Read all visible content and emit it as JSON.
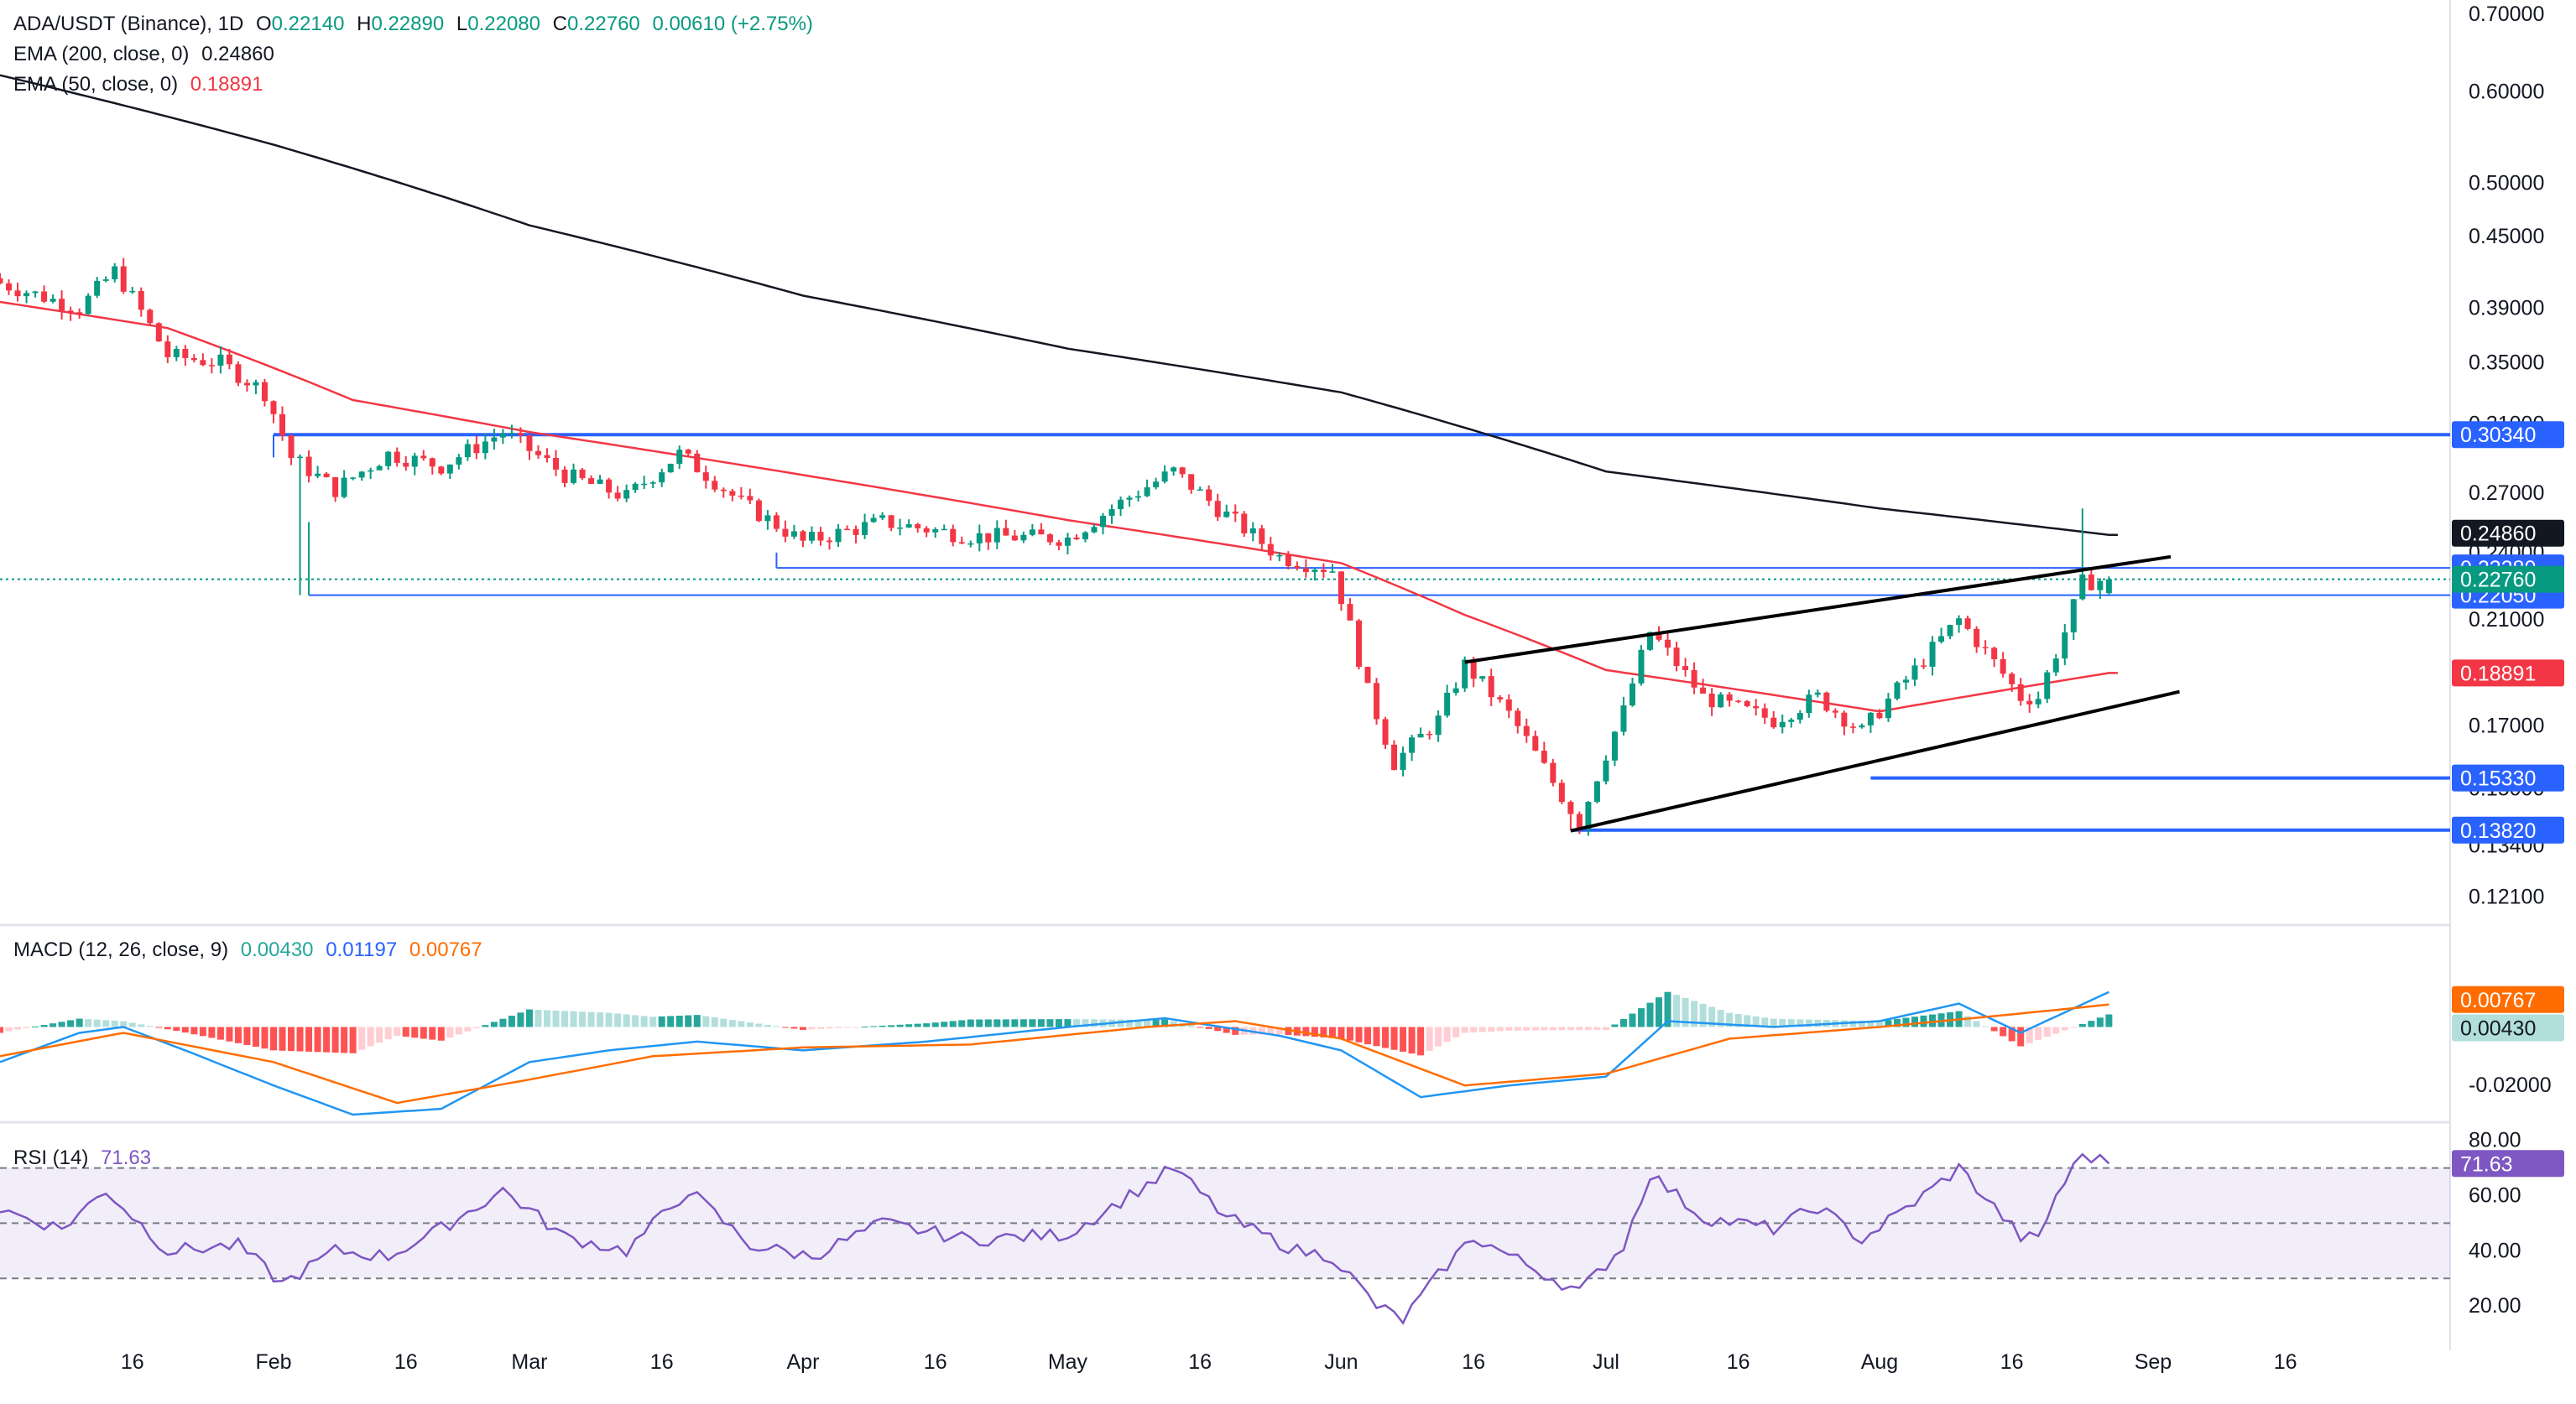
{
  "header": {
    "symbol": "ADA/USDT (Binance), 1D",
    "o_label": "O",
    "o_value": "0.22140",
    "h_label": "H",
    "h_value": "0.22890",
    "l_label": "L",
    "l_value": "0.22080",
    "c_label": "C",
    "c_value": "0.22760",
    "change": "0.00610 (+2.75%)",
    "ema200_label": "EMA (200, close, 0)",
    "ema200_value": "0.24860",
    "ema50_label": "EMA (50, close, 0)",
    "ema50_value": "0.18891"
  },
  "macd_legend": {
    "label": "MACD (12, 26, close, 9)",
    "hist": "0.00430",
    "macd": "0.01197",
    "signal": "0.00767"
  },
  "rsi_legend": {
    "label": "RSI (14)",
    "value": "71.63"
  },
  "colors": {
    "up": "#089981",
    "down": "#f23645",
    "ema200": "#131722",
    "ema50": "#f23645",
    "level": "#2962ff",
    "macd": "#2196f3",
    "signal": "#ff6d00",
    "rsi": "#7e57c2",
    "hist_up_strong": "#26a69a",
    "hist_up_weak": "#b2dfdb",
    "hist_down_strong": "#ff5252",
    "hist_down_weak": "#ffcdd2"
  },
  "chart_data": [
    {
      "type": "candlestick",
      "timeframe": "1D",
      "x_range": [
        "2024-01-01",
        "2024-09-24"
      ],
      "y_scale": "log",
      "ylim": [
        0.115,
        0.72
      ],
      "y_ticks": [
        "0.70000",
        "0.60000",
        "0.50000",
        "0.45000",
        "0.39000",
        "0.35000",
        "0.31000",
        "0.27000",
        "0.24000",
        "0.21000",
        "0.17000",
        "0.15000",
        "0.13400",
        "0.12100"
      ],
      "x_ticks": [
        {
          "date": "2024-01-16",
          "label": "16"
        },
        {
          "date": "2024-02-01",
          "label": "Feb"
        },
        {
          "date": "2024-02-16",
          "label": "16"
        },
        {
          "date": "2024-03-01",
          "label": "Mar"
        },
        {
          "date": "2024-03-16",
          "label": "16"
        },
        {
          "date": "2024-04-01",
          "label": "Apr"
        },
        {
          "date": "2024-04-16",
          "label": "16"
        },
        {
          "date": "2024-05-01",
          "label": "May"
        },
        {
          "date": "2024-05-16",
          "label": "16"
        },
        {
          "date": "2024-06-01",
          "label": "Jun"
        },
        {
          "date": "2024-06-16",
          "label": "16"
        },
        {
          "date": "2024-07-01",
          "label": "Jul"
        },
        {
          "date": "2024-07-16",
          "label": "16"
        },
        {
          "date": "2024-08-01",
          "label": "Aug"
        },
        {
          "date": "2024-08-16",
          "label": "16"
        },
        {
          "date": "2024-09-01",
          "label": "Sep"
        },
        {
          "date": "2024-09-16",
          "label": "16"
        }
      ],
      "close_anchors": [
        [
          "2024-01-01",
          0.41
        ],
        [
          "2024-01-10",
          0.39
        ],
        [
          "2024-01-14",
          0.42
        ],
        [
          "2024-01-20",
          0.355
        ],
        [
          "2024-01-26",
          0.35
        ],
        [
          "2024-01-31",
          0.33
        ],
        [
          "2024-02-03",
          0.29
        ],
        [
          "2024-02-08",
          0.272
        ],
        [
          "2024-02-14",
          0.292
        ],
        [
          "2024-02-20",
          0.285
        ],
        [
          "2024-02-27",
          0.305
        ],
        [
          "2024-03-05",
          0.28
        ],
        [
          "2024-03-12",
          0.268
        ],
        [
          "2024-03-18",
          0.292
        ],
        [
          "2024-03-25",
          0.265
        ],
        [
          "2024-04-01",
          0.245
        ],
        [
          "2024-04-10",
          0.255
        ],
        [
          "2024-04-20",
          0.248
        ],
        [
          "2024-05-01",
          0.247
        ],
        [
          "2024-05-08",
          0.268
        ],
        [
          "2024-05-13",
          0.282
        ],
        [
          "2024-05-18",
          0.262
        ],
        [
          "2024-05-25",
          0.238
        ],
        [
          "2024-05-31",
          0.232
        ],
        [
          "2024-06-04",
          0.182
        ],
        [
          "2024-06-07",
          0.158
        ],
        [
          "2024-06-12",
          0.172
        ],
        [
          "2024-06-15",
          0.192
        ],
        [
          "2024-06-20",
          0.174
        ],
        [
          "2024-06-25",
          0.152
        ],
        [
          "2024-06-28",
          0.14
        ],
        [
          "2024-07-03",
          0.175
        ],
        [
          "2024-07-06",
          0.205
        ],
        [
          "2024-07-12",
          0.18
        ],
        [
          "2024-07-20",
          0.172
        ],
        [
          "2024-07-25",
          0.18
        ],
        [
          "2024-07-30",
          0.168
        ],
        [
          "2024-08-05",
          0.19
        ],
        [
          "2024-08-10",
          0.21
        ],
        [
          "2024-08-17",
          0.18
        ],
        [
          "2024-08-19",
          0.18
        ],
        [
          "2024-08-22",
          0.205
        ],
        [
          "2024-08-24",
          0.226
        ],
        [
          "2024-08-27",
          0.2276
        ]
      ],
      "ohlc_last": {
        "open": 0.2214,
        "high": 0.2289,
        "low": 0.2208,
        "close": 0.2276
      },
      "ema200_anchors": [
        [
          "2024-01-01",
          0.62
        ],
        [
          "2024-02-01",
          0.54
        ],
        [
          "2024-03-01",
          0.46
        ],
        [
          "2024-04-01",
          0.4
        ],
        [
          "2024-05-01",
          0.36
        ],
        [
          "2024-06-01",
          0.33
        ],
        [
          "2024-07-01",
          0.282
        ],
        [
          "2024-08-01",
          0.262
        ],
        [
          "2024-08-27",
          0.2486
        ]
      ],
      "ema50_anchors": [
        [
          "2024-01-01",
          0.395
        ],
        [
          "2024-01-20",
          0.375
        ],
        [
          "2024-02-10",
          0.325
        ],
        [
          "2024-03-01",
          0.305
        ],
        [
          "2024-04-01",
          0.28
        ],
        [
          "2024-05-01",
          0.256
        ],
        [
          "2024-06-01",
          0.235
        ],
        [
          "2024-06-15",
          0.212
        ],
        [
          "2024-07-01",
          0.19
        ],
        [
          "2024-08-01",
          0.175
        ],
        [
          "2024-08-27",
          0.18891
        ]
      ],
      "horizontal_levels": [
        {
          "label": "0.30340",
          "value": 0.3034,
          "from": "2024-02-01"
        },
        {
          "label": "0.23280",
          "value": 0.2328,
          "from": "2024-03-29"
        },
        {
          "label": "0.22050",
          "value": 0.2205,
          "from": "2024-02-05"
        },
        {
          "label": "0.15330",
          "value": 0.1533,
          "from": "2024-07-31"
        },
        {
          "label": "0.13820",
          "value": 0.1382,
          "from": "2024-06-27"
        }
      ],
      "trendlines": [
        {
          "from": [
            "2024-06-15",
            0.193
          ],
          "to": [
            "2024-09-03",
            0.238
          ]
        },
        {
          "from": [
            "2024-06-27",
            0.138
          ],
          "to": [
            "2024-09-04",
            0.182
          ]
        }
      ],
      "price_labels": [
        {
          "label": "0.24860",
          "value": 0.2486,
          "kind": "ema200"
        },
        {
          "label": "0.22760",
          "value": 0.2276,
          "kind": "close"
        },
        {
          "label": "0.18891",
          "value": 0.18891,
          "kind": "ema50"
        }
      ]
    },
    {
      "type": "macd",
      "ylim": [
        -0.032,
        0.034
      ],
      "y_ticks": [
        "0.00000",
        "-0.02000"
      ],
      "macd_anchors": [
        [
          "2024-01-01",
          -0.012
        ],
        [
          "2024-01-10",
          -0.002
        ],
        [
          "2024-01-15",
          0.0
        ],
        [
          "2024-01-22",
          -0.008
        ],
        [
          "2024-02-01",
          -0.02
        ],
        [
          "2024-02-10",
          -0.03
        ],
        [
          "2024-02-20",
          -0.028
        ],
        [
          "2024-03-01",
          -0.012
        ],
        [
          "2024-03-10",
          -0.008
        ],
        [
          "2024-03-20",
          -0.005
        ],
        [
          "2024-04-01",
          -0.008
        ],
        [
          "2024-04-15",
          -0.005
        ],
        [
          "2024-05-01",
          0.0
        ],
        [
          "2024-05-12",
          0.003
        ],
        [
          "2024-05-25",
          -0.003
        ],
        [
          "2024-06-01",
          -0.008
        ],
        [
          "2024-06-10",
          -0.024
        ],
        [
          "2024-06-20",
          -0.02
        ],
        [
          "2024-07-01",
          -0.017
        ],
        [
          "2024-07-08",
          0.002
        ],
        [
          "2024-07-20",
          0.0
        ],
        [
          "2024-08-01",
          0.002
        ],
        [
          "2024-08-10",
          0.008
        ],
        [
          "2024-08-17",
          -0.002
        ],
        [
          "2024-08-27",
          0.01197
        ]
      ],
      "signal_anchors": [
        [
          "2024-01-01",
          -0.01
        ],
        [
          "2024-01-15",
          -0.002
        ],
        [
          "2024-02-01",
          -0.012
        ],
        [
          "2024-02-15",
          -0.026
        ],
        [
          "2024-03-01",
          -0.018
        ],
        [
          "2024-03-15",
          -0.01
        ],
        [
          "2024-04-01",
          -0.007
        ],
        [
          "2024-04-20",
          -0.006
        ],
        [
          "2024-05-10",
          0.0
        ],
        [
          "2024-05-20",
          0.002
        ],
        [
          "2024-06-01",
          -0.004
        ],
        [
          "2024-06-15",
          -0.02
        ],
        [
          "2024-07-01",
          -0.016
        ],
        [
          "2024-07-15",
          -0.004
        ],
        [
          "2024-08-01",
          0.0
        ],
        [
          "2024-08-15",
          0.004
        ],
        [
          "2024-08-27",
          0.00767
        ]
      ],
      "last": {
        "histogram": 0.0043,
        "macd": 0.01197,
        "signal": 0.00767
      }
    },
    {
      "type": "rsi",
      "ylim": [
        10,
        86
      ],
      "y_ticks": [
        "80.00",
        "60.00",
        "40.00",
        "20.00"
      ],
      "bands": {
        "upper": 70,
        "middle": 50,
        "lower": 30
      },
      "anchors": [
        [
          "2024-01-01",
          55
        ],
        [
          "2024-01-08",
          48
        ],
        [
          "2024-01-13",
          62
        ],
        [
          "2024-01-20",
          40
        ],
        [
          "2024-01-28",
          42
        ],
        [
          "2024-02-02",
          28
        ],
        [
          "2024-02-08",
          40
        ],
        [
          "2024-02-14",
          38
        ],
        [
          "2024-02-20",
          48
        ],
        [
          "2024-02-27",
          62
        ],
        [
          "2024-03-05",
          45
        ],
        [
          "2024-03-12",
          40
        ],
        [
          "2024-03-19",
          62
        ],
        [
          "2024-03-26",
          42
        ],
        [
          "2024-04-02",
          38
        ],
        [
          "2024-04-10",
          50
        ],
        [
          "2024-04-20",
          44
        ],
        [
          "2024-05-01",
          46
        ],
        [
          "2024-05-09",
          62
        ],
        [
          "2024-05-13",
          70
        ],
        [
          "2024-05-19",
          52
        ],
        [
          "2024-05-27",
          40
        ],
        [
          "2024-05-31",
          38
        ],
        [
          "2024-06-05",
          20
        ],
        [
          "2024-06-08",
          15
        ],
        [
          "2024-06-13",
          35
        ],
        [
          "2024-06-16",
          45
        ],
        [
          "2024-06-22",
          35
        ],
        [
          "2024-06-28",
          25
        ],
        [
          "2024-07-03",
          42
        ],
        [
          "2024-07-06",
          68
        ],
        [
          "2024-07-12",
          52
        ],
        [
          "2024-07-20",
          48
        ],
        [
          "2024-07-25",
          56
        ],
        [
          "2024-07-30",
          44
        ],
        [
          "2024-08-06",
          60
        ],
        [
          "2024-08-10",
          70
        ],
        [
          "2024-08-17",
          45
        ],
        [
          "2024-08-19",
          44
        ],
        [
          "2024-08-21",
          60
        ],
        [
          "2024-08-24",
          75
        ],
        [
          "2024-08-27",
          71.63
        ]
      ]
    }
  ]
}
